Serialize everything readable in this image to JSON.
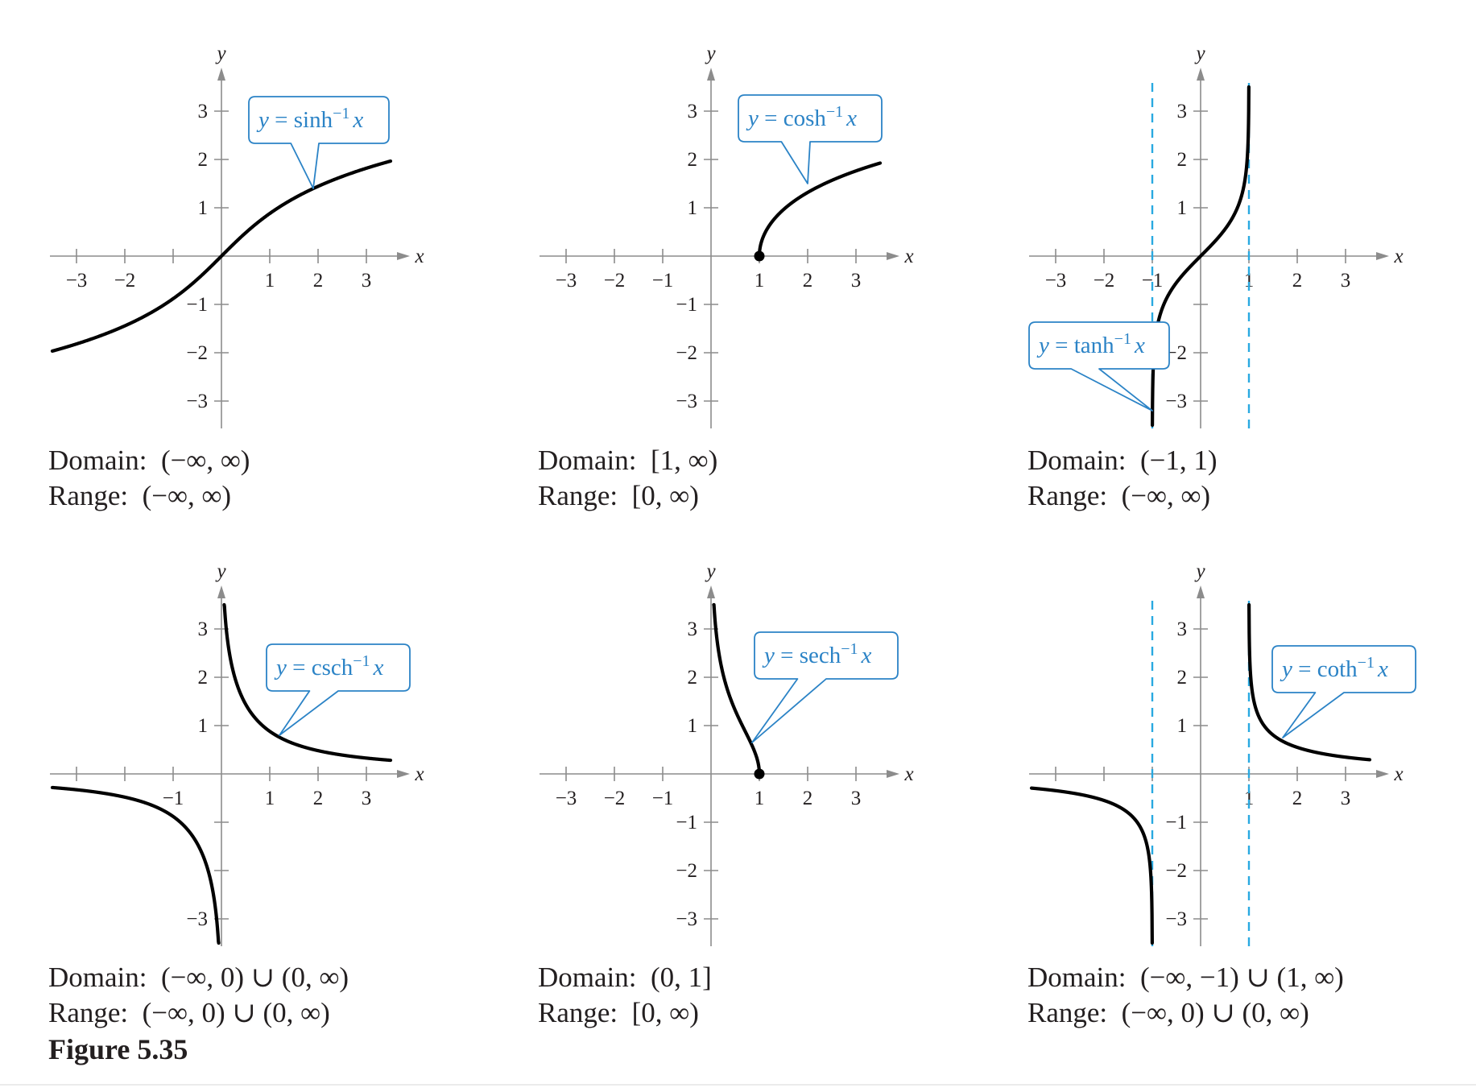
{
  "figure_label": "Figure 5.35",
  "colors": {
    "curve": "#000000",
    "axis": "#8c8c8c",
    "asymptote": "#29a9e1",
    "callout_text": "#2b83c6",
    "callout_border": "#2b83c6",
    "tick_text": "#231f20"
  },
  "chart_data": [
    {
      "type": "line",
      "function": "asinh",
      "xlim": [
        -3.5,
        3.5
      ],
      "ylim": [
        -3.5,
        3.5
      ],
      "xticks": [
        -3,
        -2,
        -1,
        1,
        2,
        3
      ],
      "xtick_labels": [
        "−3",
        "−2",
        "",
        "1",
        "2",
        "3"
      ],
      "yticks": [
        -3,
        -2,
        -1,
        1,
        2,
        3
      ],
      "ytick_labels": [
        "−3",
        "−2",
        "−1",
        "1",
        "2",
        "3"
      ],
      "xlabel": "x",
      "ylabel": "y",
      "callout": {
        "prefix": "y = sinh",
        "sup": "−1",
        "var": "x",
        "anchor": [
          1.9,
          1.4
        ]
      },
      "series": [
        {
          "domain": [
            -3.5,
            3.5
          ]
        }
      ],
      "asymptotes": [],
      "points": [],
      "domain_label": "Domain:",
      "domain_value": "(−∞, ∞)",
      "range_label": "Range:",
      "range_value": "(−∞, ∞)"
    },
    {
      "type": "line",
      "function": "acosh",
      "xlim": [
        -3.5,
        3.5
      ],
      "ylim": [
        -3.5,
        3.5
      ],
      "xticks": [
        -3,
        -2,
        -1,
        1,
        2,
        3
      ],
      "xtick_labels": [
        "−3",
        "−2",
        "−1",
        "1",
        "2",
        "3"
      ],
      "yticks": [
        -3,
        -2,
        -1,
        1,
        2,
        3
      ],
      "ytick_labels": [
        "−3",
        "−2",
        "−1",
        "1",
        "2",
        "3"
      ],
      "xlabel": "x",
      "ylabel": "y",
      "callout": {
        "prefix": "y = cosh",
        "sup": "−1",
        "var": "x",
        "anchor": [
          2.0,
          1.5
        ]
      },
      "series": [
        {
          "domain": [
            1,
            3.5
          ]
        }
      ],
      "asymptotes": [],
      "points": [
        [
          1,
          0
        ]
      ],
      "domain_label": "Domain:",
      "domain_value": "[1, ∞)",
      "range_label": "Range:",
      "range_value": "[0, ∞)"
    },
    {
      "type": "line",
      "function": "atanh",
      "xlim": [
        -3.5,
        3.5
      ],
      "ylim": [
        -3.5,
        3.5
      ],
      "xticks": [
        -3,
        -2,
        -1,
        1,
        2,
        3
      ],
      "xtick_labels": [
        "−3",
        "−2",
        "−1",
        "1",
        "2",
        "3"
      ],
      "yticks": [
        -3,
        -2,
        -1,
        1,
        2,
        3
      ],
      "ytick_labels": [
        "−3",
        "−2",
        "",
        "1",
        "2",
        "3"
      ],
      "xlabel": "x",
      "ylabel": "y",
      "callout": {
        "prefix": "y = tanh",
        "sup": "−1",
        "var": "x",
        "anchor": [
          -1.0,
          -3.2
        ]
      },
      "series": [
        {
          "domain": [
            -0.9987,
            0.9983
          ]
        }
      ],
      "asymptotes": [
        -1,
        1
      ],
      "points": [],
      "domain_label": "Domain:",
      "domain_value": "(−1, 1)",
      "range_label": "Range:",
      "range_value": "(−∞, ∞)"
    },
    {
      "type": "line",
      "function": "acsch",
      "xlim": [
        -3.5,
        3.5
      ],
      "ylim": [
        -3.5,
        3.5
      ],
      "xticks": [
        -3,
        -2,
        -1,
        1,
        2,
        3
      ],
      "xtick_labels": [
        "",
        "",
        "−1",
        "1",
        "2",
        "3"
      ],
      "yticks": [
        -3,
        -2,
        -1,
        1,
        2,
        3
      ],
      "ytick_labels": [
        "−3",
        "",
        "",
        "1",
        "2",
        "3"
      ],
      "xlabel": "x",
      "ylabel": "y",
      "callout": {
        "prefix": "y = csch",
        "sup": "−1",
        "var": "x",
        "anchor": [
          1.2,
          0.8
        ]
      },
      "series": [
        {
          "domain": [
            -3.5,
            -0.0569
          ]
        },
        {
          "domain": [
            0.0569,
            3.5
          ]
        }
      ],
      "asymptotes": [],
      "points": [],
      "domain_label": "Domain:",
      "domain_value": "(−∞, 0) ∪ (0, ∞)",
      "range_label": "Range:",
      "range_value": "(−∞, 0) ∪ (0, ∞)"
    },
    {
      "type": "line",
      "function": "asech",
      "xlim": [
        -3.5,
        3.5
      ],
      "ylim": [
        -3.5,
        3.5
      ],
      "xticks": [
        -3,
        -2,
        -1,
        1,
        2,
        3
      ],
      "xtick_labels": [
        "−3",
        "−2",
        "−1",
        "1",
        "2",
        "3"
      ],
      "yticks": [
        -3,
        -2,
        -1,
        1,
        2,
        3
      ],
      "ytick_labels": [
        "−3",
        "−2",
        "−1",
        "1",
        "2",
        "3"
      ],
      "xlabel": "x",
      "ylabel": "y",
      "callout": {
        "prefix": "y = sech",
        "sup": "−1",
        "var": "x",
        "anchor": [
          0.85,
          0.65
        ]
      },
      "series": [
        {
          "domain": [
            0.0569,
            1
          ]
        }
      ],
      "asymptotes": [],
      "points": [
        [
          1,
          0
        ]
      ],
      "domain_label": "Domain:",
      "domain_value": "(0, 1]",
      "range_label": "Range:",
      "range_value": "[0, ∞)"
    },
    {
      "type": "line",
      "function": "acoth",
      "xlim": [
        -3.5,
        3.5
      ],
      "ylim": [
        -3.5,
        3.5
      ],
      "xticks": [
        -3,
        -2,
        -1,
        1,
        2,
        3
      ],
      "xtick_labels": [
        "",
        "",
        "",
        "1",
        "2",
        "3"
      ],
      "yticks": [
        -3,
        -2,
        -1,
        1,
        2,
        3
      ],
      "ytick_labels": [
        "−3",
        "−2",
        "−1",
        "1",
        "2",
        "3"
      ],
      "xlabel": "x",
      "ylabel": "y",
      "callout": {
        "prefix": "y = coth",
        "sup": "−1",
        "var": "x",
        "anchor": [
          1.7,
          0.75
        ]
      },
      "series": [
        {
          "domain": [
            -3.5,
            -1.0018
          ]
        },
        {
          "domain": [
            1.0018,
            3.5
          ]
        }
      ],
      "asymptotes": [
        -1,
        1
      ],
      "points": [],
      "domain_label": "Domain:",
      "domain_value": "(−∞, −1) ∪ (1, ∞)",
      "range_label": "Range:",
      "range_value": "(−∞, 0) ∪ (0, ∞)"
    }
  ]
}
